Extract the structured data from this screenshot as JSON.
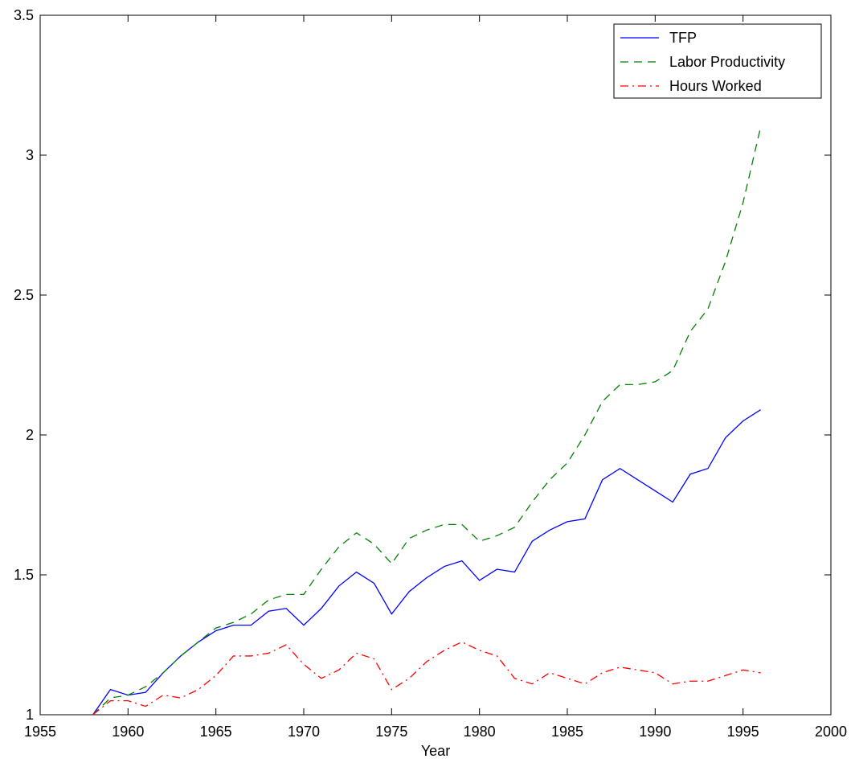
{
  "chart_data": {
    "type": "line",
    "x_label": "Year",
    "x": [
      1958,
      1959,
      1960,
      1961,
      1962,
      1963,
      1964,
      1965,
      1966,
      1967,
      1968,
      1969,
      1970,
      1971,
      1972,
      1973,
      1974,
      1975,
      1976,
      1977,
      1978,
      1979,
      1980,
      1981,
      1982,
      1983,
      1984,
      1985,
      1986,
      1987,
      1988,
      1989,
      1990,
      1991,
      1992,
      1993,
      1994,
      1995,
      1996
    ],
    "series": [
      {
        "name": "TFP",
        "color": "#0000ff",
        "style": "solid",
        "values": [
          1.0,
          1.09,
          1.07,
          1.08,
          1.15,
          1.21,
          1.26,
          1.3,
          1.32,
          1.32,
          1.37,
          1.38,
          1.32,
          1.38,
          1.46,
          1.51,
          1.47,
          1.36,
          1.44,
          1.49,
          1.53,
          1.55,
          1.48,
          1.52,
          1.51,
          1.62,
          1.66,
          1.69,
          1.7,
          1.84,
          1.88,
          1.84,
          1.8,
          1.76,
          1.86,
          1.88,
          1.99,
          2.05,
          2.09
        ]
      },
      {
        "name": "Labor Productivity",
        "color": "#008000",
        "style": "dashed",
        "values": [
          1.0,
          1.06,
          1.07,
          1.1,
          1.15,
          1.21,
          1.26,
          1.31,
          1.33,
          1.36,
          1.41,
          1.43,
          1.43,
          1.52,
          1.6,
          1.65,
          1.61,
          1.54,
          1.63,
          1.66,
          1.68,
          1.68,
          1.62,
          1.64,
          1.67,
          1.76,
          1.84,
          1.9,
          2.0,
          2.12,
          2.18,
          2.18,
          2.19,
          2.23,
          2.37,
          2.45,
          2.62,
          2.83,
          3.1
        ]
      },
      {
        "name": "Hours Worked",
        "color": "#ff0000",
        "style": "dashdot",
        "values": [
          1.0,
          1.05,
          1.05,
          1.03,
          1.07,
          1.06,
          1.09,
          1.14,
          1.21,
          1.21,
          1.22,
          1.25,
          1.18,
          1.13,
          1.16,
          1.22,
          1.2,
          1.09,
          1.13,
          1.19,
          1.23,
          1.26,
          1.23,
          1.21,
          1.13,
          1.11,
          1.15,
          1.13,
          1.11,
          1.15,
          1.17,
          1.16,
          1.15,
          1.11,
          1.12,
          1.12,
          1.14,
          1.16,
          1.15
        ]
      }
    ],
    "xlim": [
      1955,
      2000
    ],
    "xticks": [
      1955,
      1960,
      1965,
      1970,
      1975,
      1980,
      1985,
      1990,
      1995,
      2000
    ],
    "ylim": [
      1,
      3.5
    ],
    "yticks": [
      1,
      1.5,
      2,
      2.5,
      3,
      3.5
    ],
    "legend": "top-right"
  }
}
